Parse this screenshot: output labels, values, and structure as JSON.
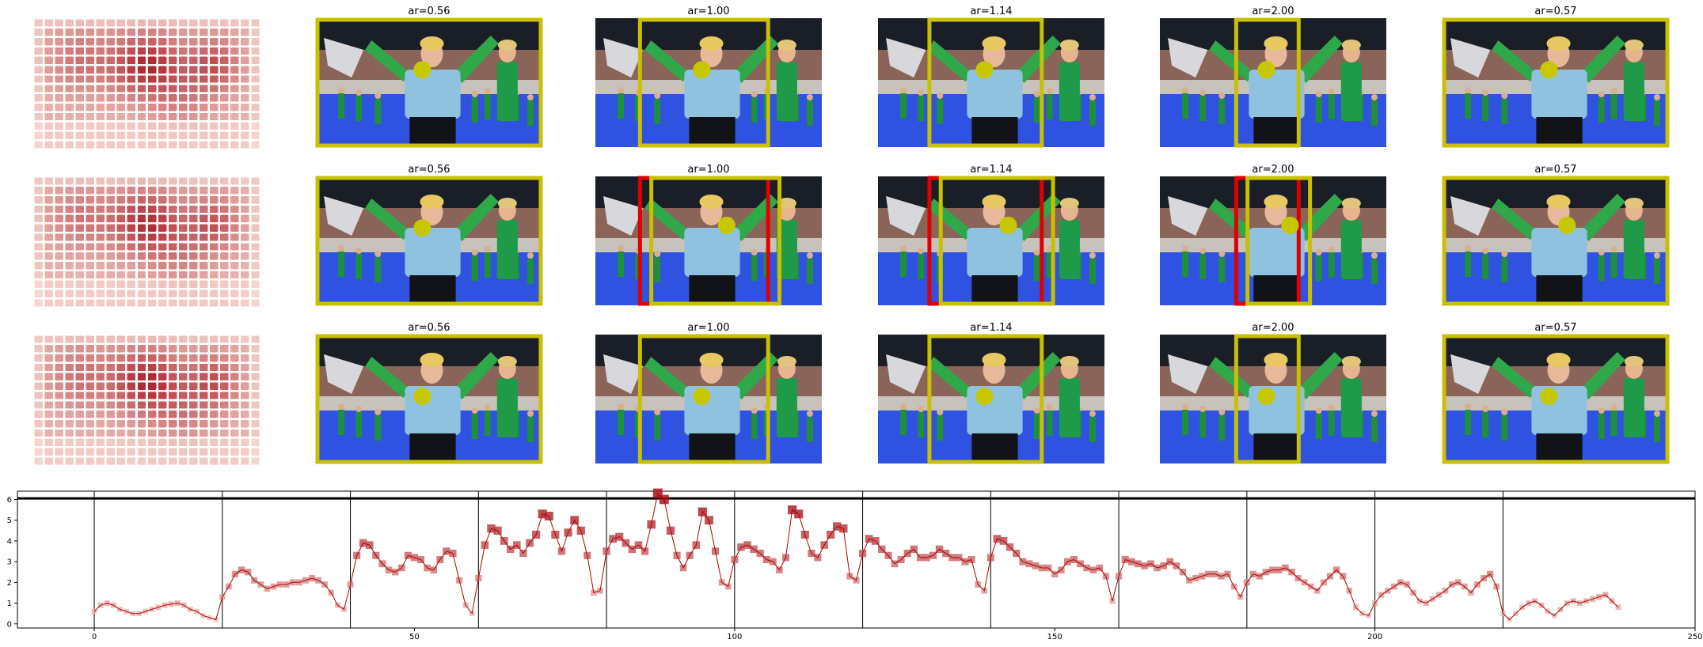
{
  "colors": {
    "box": "#c8c000",
    "dot": "#c8c800",
    "alt_box": "#e00000",
    "line": "#b00000",
    "heat_low": "#fde8df",
    "heat_high": "#a8141e",
    "background": "#ffffff"
  },
  "heatmap": {
    "rows": 14,
    "cols": 22
  },
  "panel_titles": [
    [
      "ar=0.56",
      "ar=1.00",
      "ar=1.14",
      "ar=2.00",
      "ar=0.57"
    ],
    [
      "ar=0.56",
      "ar=1.00",
      "ar=1.14",
      "ar=2.00",
      "ar=0.57"
    ],
    [
      "ar=0.56",
      "ar=1.00",
      "ar=1.14",
      "ar=2.00",
      "ar=0.57"
    ]
  ],
  "icon_names": [
    "heatmap-icon",
    "photo-icon",
    "crop-box-icon",
    "focus-dot-icon"
  ],
  "chart_data": {
    "type": "line",
    "title": "",
    "xlabel": "",
    "ylabel": "",
    "xlim": [
      -12,
      250
    ],
    "ylim": [
      -0.2,
      6.4
    ],
    "xticks": [
      0,
      50,
      100,
      150,
      200,
      250
    ],
    "yticks": [
      0,
      1,
      2,
      3,
      4,
      5,
      6
    ],
    "segment_boundaries": [
      0,
      20,
      40,
      60,
      80,
      100,
      120,
      140,
      160,
      180,
      200,
      220
    ],
    "horizontal_lines": [
      6.05
    ],
    "grid": false,
    "legend": "none",
    "series": [
      {
        "x": [
          0,
          1,
          2,
          3,
          4,
          5,
          6,
          7,
          8,
          9,
          10,
          11,
          12,
          13,
          14,
          15,
          16,
          17,
          18,
          19,
          20,
          21,
          22,
          23,
          24,
          25,
          26,
          27,
          28,
          29,
          30,
          31,
          32,
          33,
          34,
          35,
          36,
          37,
          38,
          39,
          40,
          41,
          42,
          43,
          44,
          45,
          46,
          47,
          48,
          49,
          50,
          51,
          52,
          53,
          54,
          55,
          56,
          57,
          58,
          59,
          60,
          61,
          62,
          63,
          64,
          65,
          66,
          67,
          68,
          69,
          70,
          71,
          72,
          73,
          74,
          75,
          76,
          77,
          78,
          79,
          80,
          81,
          82,
          83,
          84,
          85,
          86,
          87,
          88,
          89,
          90,
          91,
          92,
          93,
          94,
          95,
          96,
          97,
          98,
          99,
          100,
          101,
          102,
          103,
          104,
          105,
          106,
          107,
          108,
          109,
          110,
          111,
          112,
          113,
          114,
          115,
          116,
          117,
          118,
          119,
          120,
          121,
          122,
          123,
          124,
          125,
          126,
          127,
          128,
          129,
          130,
          131,
          132,
          133,
          134,
          135,
          136,
          137,
          138,
          139,
          140,
          141,
          142,
          143,
          144,
          145,
          146,
          147,
          148,
          149,
          150,
          151,
          152,
          153,
          154,
          155,
          156,
          157,
          158,
          159,
          160,
          161,
          162,
          163,
          164,
          165,
          166,
          167,
          168,
          169,
          170,
          171,
          172,
          173,
          174,
          175,
          176,
          177,
          178,
          179,
          180,
          181,
          182,
          183,
          184,
          185,
          186,
          187,
          188,
          189,
          190,
          191,
          192,
          193,
          194,
          195,
          196,
          197,
          198,
          199,
          200,
          201,
          202,
          203,
          204,
          205,
          206,
          207,
          208,
          209,
          210,
          211,
          212,
          213,
          214,
          215,
          216,
          217,
          218,
          219,
          220,
          221,
          222,
          223,
          224,
          225,
          226,
          227,
          228,
          229,
          230,
          231,
          232,
          233,
          234,
          235,
          236,
          237,
          238
        ],
        "y": [
          0.6,
          0.9,
          1.0,
          0.9,
          0.7,
          0.6,
          0.5,
          0.5,
          0.6,
          0.7,
          0.8,
          0.9,
          0.95,
          1.0,
          0.9,
          0.7,
          0.6,
          0.4,
          0.3,
          0.2,
          1.3,
          1.8,
          2.4,
          2.6,
          2.5,
          2.1,
          1.9,
          1.7,
          1.8,
          1.9,
          1.9,
          2.0,
          2.0,
          2.1,
          2.2,
          2.1,
          1.9,
          1.5,
          0.9,
          0.7,
          1.9,
          3.3,
          3.9,
          3.8,
          3.3,
          2.9,
          2.6,
          2.5,
          2.7,
          3.3,
          3.2,
          3.1,
          2.7,
          2.6,
          3.1,
          3.5,
          3.4,
          2.1,
          0.9,
          0.5,
          2.2,
          3.8,
          4.6,
          4.5,
          4.0,
          3.6,
          3.8,
          3.4,
          3.9,
          4.3,
          5.3,
          5.2,
          4.3,
          3.5,
          4.4,
          5.0,
          4.5,
          3.3,
          1.5,
          1.6,
          3.5,
          4.1,
          4.2,
          3.9,
          3.6,
          3.8,
          3.5,
          4.8,
          6.3,
          6.0,
          4.5,
          3.3,
          2.7,
          3.3,
          3.8,
          5.4,
          5.0,
          3.5,
          2.0,
          1.8,
          3.1,
          3.7,
          3.8,
          3.6,
          3.4,
          3.1,
          3.0,
          2.6,
          3.2,
          5.5,
          5.3,
          4.3,
          3.4,
          3.2,
          3.8,
          4.3,
          4.7,
          4.6,
          2.3,
          2.1,
          3.4,
          4.1,
          4.0,
          3.6,
          3.3,
          2.9,
          3.1,
          3.4,
          3.6,
          3.2,
          3.2,
          3.3,
          3.6,
          3.4,
          3.2,
          3.2,
          3.0,
          3.1,
          1.9,
          1.6,
          3.2,
          4.1,
          4.0,
          3.7,
          3.4,
          3.0,
          2.9,
          2.8,
          2.7,
          2.7,
          2.4,
          2.6,
          3.0,
          3.1,
          2.9,
          2.7,
          2.6,
          2.7,
          2.3,
          1.1,
          2.3,
          3.1,
          3.0,
          2.9,
          2.8,
          2.9,
          2.7,
          2.8,
          3.0,
          2.8,
          2.5,
          2.1,
          2.2,
          2.3,
          2.4,
          2.4,
          2.3,
          2.4,
          1.8,
          1.3,
          2.0,
          2.4,
          2.3,
          2.5,
          2.6,
          2.6,
          2.7,
          2.5,
          2.2,
          2.0,
          1.8,
          1.6,
          2.0,
          2.3,
          2.6,
          2.3,
          1.6,
          0.8,
          0.5,
          0.4,
          1.0,
          1.4,
          1.6,
          1.8,
          2.0,
          1.9,
          1.5,
          1.1,
          1.0,
          1.2,
          1.4,
          1.6,
          1.9,
          2.0,
          1.8,
          1.5,
          1.9,
          2.2,
          2.4,
          1.8,
          0.5,
          0.2,
          0.5,
          0.8,
          1.0,
          1.1,
          0.9,
          0.6,
          0.4,
          0.7,
          1.0,
          1.1,
          1.0,
          1.1,
          1.2,
          1.3,
          1.4,
          1.1,
          0.8
        ]
      }
    ]
  }
}
